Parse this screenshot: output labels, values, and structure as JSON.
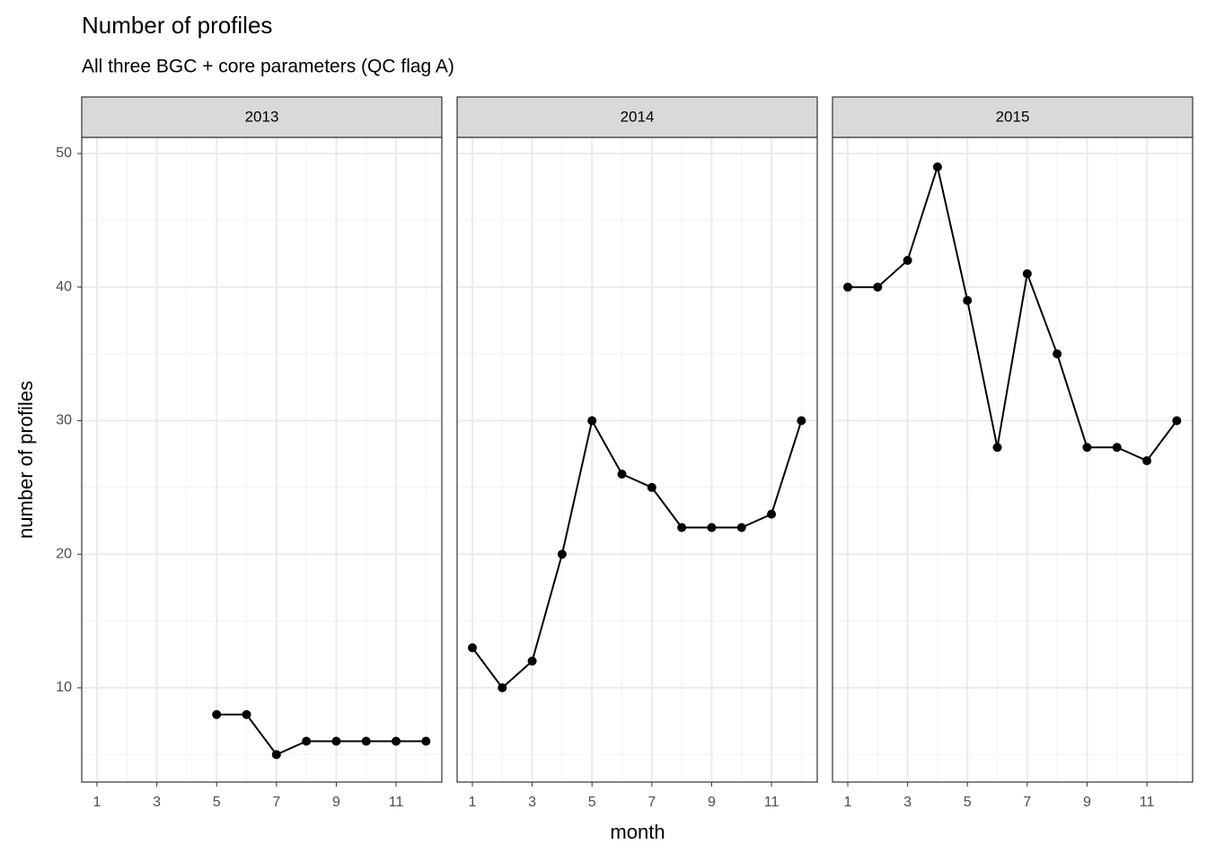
{
  "chart_data": {
    "type": "line",
    "title": "Number of profiles",
    "subtitle": "All three BGC + core parameters (QC flag A)",
    "x_label": "month",
    "y_label": "number of profiles",
    "color": "#000000",
    "grid": true,
    "xlim": [
      0.49,
      12.53
    ],
    "xticks": [
      1,
      3,
      5,
      7,
      9,
      11
    ],
    "xminor": [
      2,
      4,
      6,
      8,
      10,
      12
    ],
    "ylim": [
      2.94,
      51.21
    ],
    "yticks": [
      10,
      20,
      30,
      40,
      50
    ],
    "yminor": [
      5,
      15,
      25,
      35,
      45
    ],
    "panels": [
      {
        "name": "2013",
        "x": [
          5,
          6,
          7,
          8,
          9,
          10,
          11,
          12
        ],
        "values": [
          8,
          8,
          5,
          6,
          6,
          6,
          6,
          6
        ]
      },
      {
        "name": "2014",
        "x": [
          1,
          2,
          3,
          4,
          5,
          6,
          7,
          8,
          9,
          10,
          11,
          12
        ],
        "values": [
          13,
          10,
          12,
          20,
          30,
          26,
          25,
          22,
          22,
          22,
          23,
          30
        ]
      },
      {
        "name": "2015",
        "x": [
          1,
          2,
          3,
          4,
          5,
          6,
          7,
          8,
          9,
          10,
          11,
          12
        ],
        "values": [
          40,
          40,
          42,
          49,
          39,
          28,
          41,
          35,
          28,
          28,
          27,
          30
        ]
      }
    ]
  }
}
